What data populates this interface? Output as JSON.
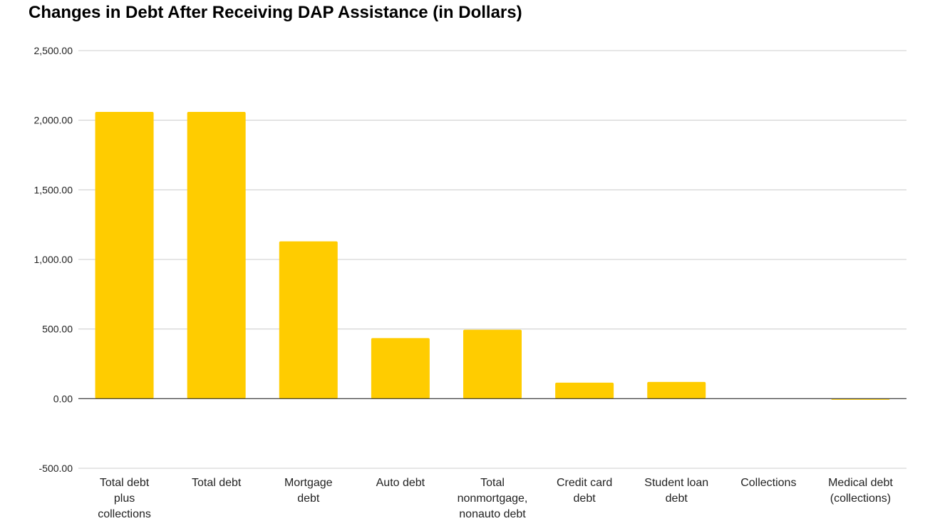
{
  "chart_data": {
    "type": "bar",
    "title": "Changes in Debt After Receiving DAP Assistance (in Dollars)",
    "xlabel": "",
    "ylabel": "",
    "ylim": [
      -500,
      2500
    ],
    "yticks": [
      2500,
      2000,
      1500,
      1000,
      500,
      0,
      -500
    ],
    "ytick_labels": [
      "2,500.00",
      "2,000.00",
      "1,500.00",
      "1,000.00",
      "500.00",
      "0.00",
      "-500.00"
    ],
    "categories": [
      "Total debt plus collections",
      "Total debt",
      "Mortgage debt",
      "Auto debt",
      "Total nonmortgage, nonauto debt",
      "Credit card debt",
      "Student loan debt",
      "Collections",
      "Medical debt (collections)"
    ],
    "category_lines": [
      [
        "Total debt",
        "plus",
        "collections"
      ],
      [
        "Total debt"
      ],
      [
        "Mortgage",
        "debt"
      ],
      [
        "Auto debt"
      ],
      [
        "Total",
        "nonmortgage,",
        "nonauto debt"
      ],
      [
        "Credit card",
        "debt"
      ],
      [
        "Student loan",
        "debt"
      ],
      [
        "Collections"
      ],
      [
        "Medical debt",
        "(collections)"
      ]
    ],
    "values": [
      2060,
      2060,
      1130,
      435,
      495,
      115,
      120,
      0,
      -5
    ],
    "bar_color": "#FFCC00",
    "grid": true,
    "legend": "none"
  }
}
